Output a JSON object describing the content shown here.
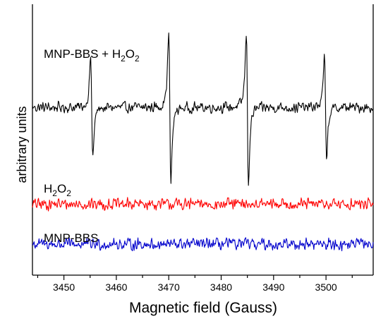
{
  "chart_data": {
    "type": "line",
    "title": "",
    "xlabel": "Magnetic field (Gauss)",
    "ylabel": "arbitrary units",
    "xlim": [
      3444,
      3509
    ],
    "ylim": [
      -11,
      10
    ],
    "x_ticks": [
      3450,
      3460,
      3470,
      3480,
      3490,
      3500
    ],
    "y_ticks_labeled": false,
    "grid": false,
    "legend": "inline labels beside traces",
    "series": [
      {
        "name": "MNP-BBS + H2O2",
        "color": "#000000",
        "baseline": 2.0,
        "noise_amplitude": 0.5,
        "lines": [
          {
            "center": 3455.3,
            "amplitude": 4.5
          },
          {
            "center": 3470.2,
            "amplitude": 6.8
          },
          {
            "center": 3485.0,
            "amplitude": 6.8
          },
          {
            "center": 3499.9,
            "amplitude": 4.5
          }
        ]
      },
      {
        "name": "H2O2",
        "color": "#ff0000",
        "baseline": -5.5,
        "noise_amplitude": 0.55,
        "lines": []
      },
      {
        "name": "MNP-BBS",
        "color": "#0000cc",
        "baseline": -8.6,
        "noise_amplitude": 0.55,
        "lines": []
      }
    ]
  },
  "labels": {
    "combo_main": "MNP-BBS + H",
    "combo_sub1": "2",
    "combo_mid": "O",
    "combo_sub2": "2",
    "h2o2_main": "H",
    "h2o2_sub1": "2",
    "h2o2_mid": "O",
    "h2o2_sub2": "2",
    "mnp": "MNP-BBS"
  }
}
